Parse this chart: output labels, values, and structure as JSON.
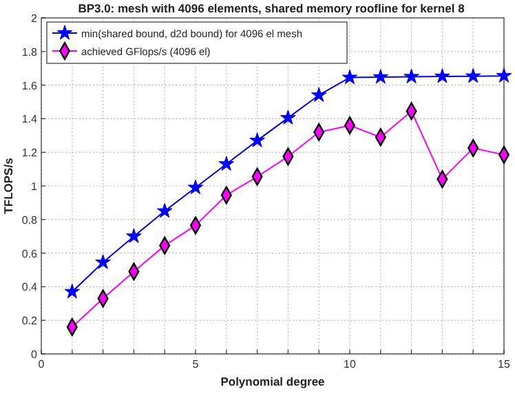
{
  "chart_data": {
    "type": "line",
    "title": "BP3.0: mesh with 4096 elements, shared memory roofline for kernel 8",
    "xlabel": "Polynomial degree",
    "ylabel": "TFLOPS/s",
    "x": [
      1,
      2,
      3,
      4,
      5,
      6,
      7,
      8,
      9,
      10,
      11,
      12,
      13,
      14,
      15
    ],
    "series": [
      {
        "name": "min(shared bound, d2d bound) for 4096 el mesh",
        "color": "#0000ff",
        "marker": "star",
        "values": [
          0.37,
          0.545,
          0.7,
          0.85,
          0.99,
          1.13,
          1.27,
          1.405,
          1.54,
          1.645,
          1.648,
          1.65,
          1.652,
          1.653,
          1.655
        ]
      },
      {
        "name": "achieved GFlops/s (4096 el)",
        "color": "#ff00ff",
        "marker": "diamond",
        "values": [
          0.16,
          0.33,
          0.49,
          0.645,
          0.765,
          0.945,
          1.055,
          1.175,
          1.32,
          1.36,
          1.29,
          1.445,
          1.04,
          1.225,
          1.185
        ]
      }
    ],
    "xlim": [
      0,
      15
    ],
    "xticks": [
      0,
      {
        "value": 1,
        "label": null
      },
      {
        "value": 2,
        "label": null
      },
      {
        "value": 3,
        "label": null
      },
      {
        "value": 4,
        "label": null
      },
      5,
      {
        "value": 6,
        "label": null
      },
      {
        "value": 7,
        "label": null
      },
      {
        "value": 8,
        "label": null
      },
      {
        "value": 9,
        "label": null
      },
      10,
      {
        "value": 11,
        "label": null
      },
      {
        "value": 12,
        "label": null
      },
      {
        "value": 13,
        "label": null
      },
      {
        "value": 14,
        "label": null
      },
      15
    ],
    "ylim": [
      0,
      2
    ],
    "yticks": [
      0,
      0.2,
      0.4,
      0.6,
      0.8,
      1,
      1.2,
      1.4,
      1.6,
      1.8,
      2
    ],
    "grid": true,
    "legend": "top left",
    "line_style": "solid"
  }
}
